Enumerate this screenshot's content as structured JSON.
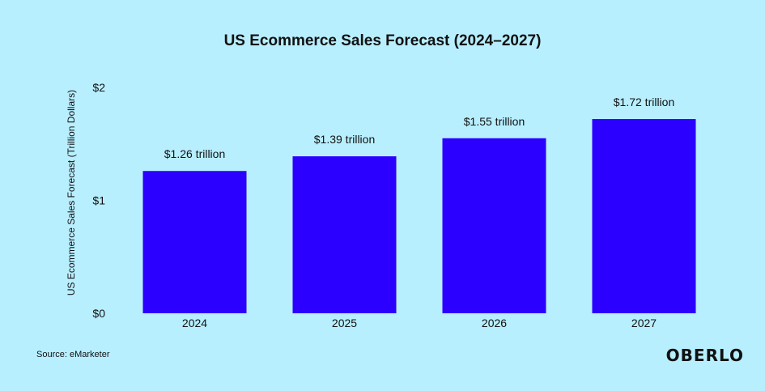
{
  "chart_data": {
    "type": "bar",
    "title": "US Ecommerce Sales Forecast (2024–2027)",
    "xlabel": "",
    "ylabel": "US Ecommerce Sales Forecast (Trillion Dollars)",
    "categories": [
      "2024",
      "2025",
      "2026",
      "2027"
    ],
    "values": [
      1.26,
      1.39,
      1.55,
      1.72
    ],
    "data_labels": [
      "$1.26 trillion",
      "$1.39 trillion",
      "$1.55 trillion",
      "$1.72 trillion"
    ],
    "ylim": [
      0,
      2
    ],
    "yticks": [
      0,
      1,
      2
    ],
    "ytick_labels": [
      "$0",
      "$1",
      "$2"
    ],
    "bar_color": "#2b00ff",
    "grid": false,
    "legend": "none"
  },
  "footer": {
    "source": "Source: eMarketer",
    "brand": "OBERLO"
  },
  "colors": {
    "background": "#b8efff",
    "text": "#111111"
  }
}
